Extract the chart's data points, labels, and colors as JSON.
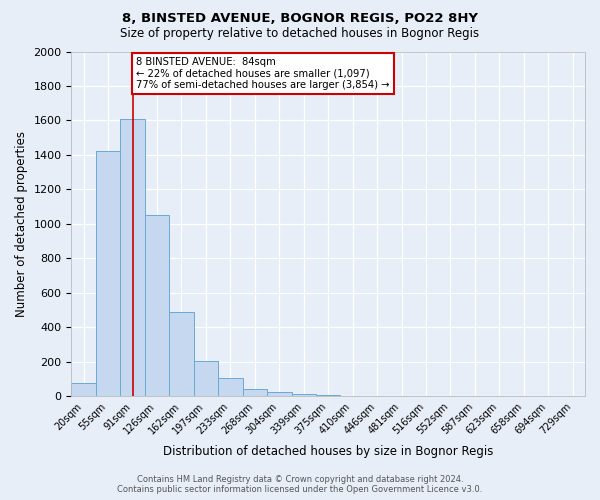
{
  "title": "8, BINSTED AVENUE, BOGNOR REGIS, PO22 8HY",
  "subtitle": "Size of property relative to detached houses in Bognor Regis",
  "xlabel": "Distribution of detached houses by size in Bognor Regis",
  "ylabel": "Number of detached properties",
  "footer_line1": "Contains HM Land Registry data © Crown copyright and database right 2024.",
  "footer_line2": "Contains public sector information licensed under the Open Government Licence v3.0.",
  "bins": [
    "20sqm",
    "55sqm",
    "91sqm",
    "126sqm",
    "162sqm",
    "197sqm",
    "233sqm",
    "268sqm",
    "304sqm",
    "339sqm",
    "375sqm",
    "410sqm",
    "446sqm",
    "481sqm",
    "516sqm",
    "552sqm",
    "587sqm",
    "623sqm",
    "658sqm",
    "694sqm",
    "729sqm"
  ],
  "values": [
    80,
    1420,
    1610,
    1050,
    490,
    205,
    105,
    45,
    25,
    15,
    10,
    0,
    0,
    0,
    0,
    0,
    0,
    0,
    0,
    0,
    0
  ],
  "bar_color": "#c5d8f0",
  "bar_edge_color": "#6aaad4",
  "red_line_x": 2,
  "annotation_title": "8 BINSTED AVENUE:  84sqm",
  "annotation_line1": "← 22% of detached houses are smaller (1,097)",
  "annotation_line2": "77% of semi-detached houses are larger (3,854) →",
  "annotation_box_color": "#ffffff",
  "annotation_box_edge_color": "#cc0000",
  "red_line_color": "#cc0000",
  "ylim": [
    0,
    2000
  ],
  "yticks": [
    0,
    200,
    400,
    600,
    800,
    1000,
    1200,
    1400,
    1600,
    1800,
    2000
  ],
  "bg_color": "#e8eef8",
  "grid_color": "#ffffff",
  "fig_width": 6.0,
  "fig_height": 5.0,
  "dpi": 100
}
